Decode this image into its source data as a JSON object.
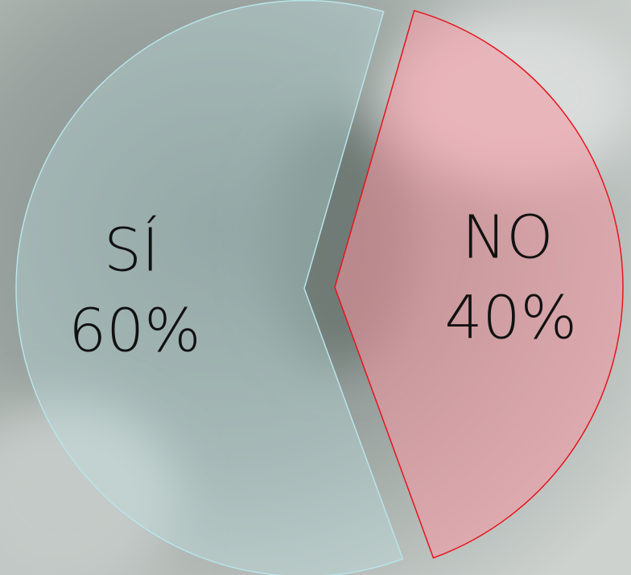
{
  "chart_data": {
    "type": "pie",
    "categories": [
      "SÍ",
      "NO"
    ],
    "values": [
      60,
      40
    ],
    "value_labels": [
      "60%",
      "40%"
    ],
    "colors": [
      "rgba(190,225,230,0.35)",
      "rgba(245,150,160,0.55)"
    ],
    "edge_colors": [
      "#b8e4ea",
      "#e8141e"
    ]
  }
}
